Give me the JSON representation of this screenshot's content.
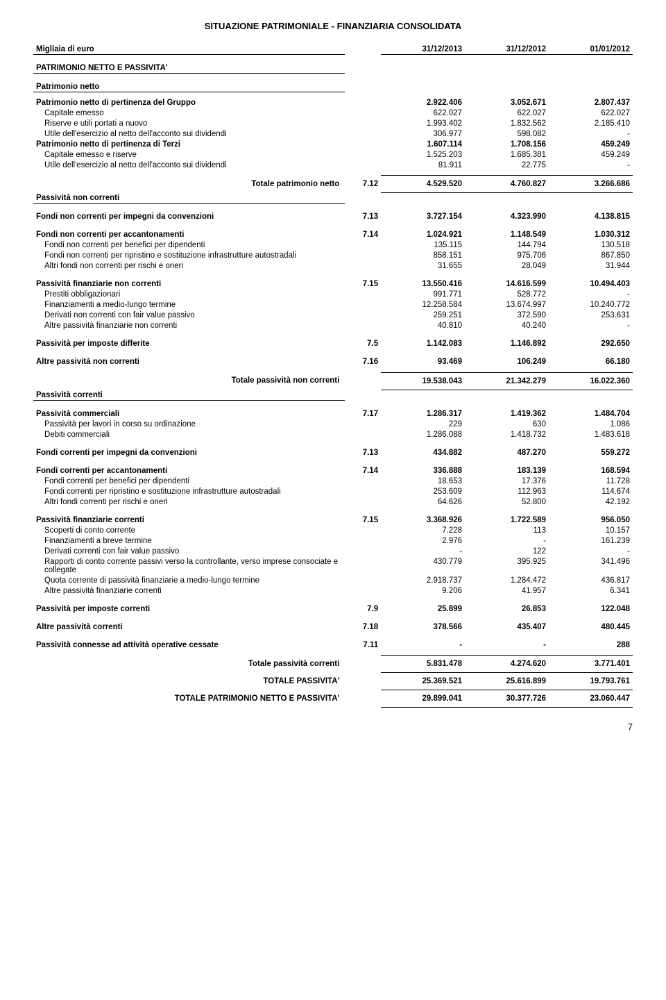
{
  "title": "SITUAZIONE PATRIMONIALE - FINANZIARIA CONSOLIDATA",
  "header": {
    "unit": "Migliaia di euro",
    "c1": "31/12/2013",
    "c2": "31/12/2012",
    "c3": "01/01/2012"
  },
  "section_main": "PATRIMONIO NETTO E PASSIVITA'",
  "section_pn": "Patrimonio netto",
  "pn_gruppo": {
    "label": "Patrimonio netto di pertinenza del Gruppo",
    "c1": "2.922.406",
    "c2": "3.052.671",
    "c3": "2.807.437"
  },
  "pn_cap": {
    "label": "Capitale emesso",
    "c1": "622.027",
    "c2": "622.027",
    "c3": "622.027"
  },
  "pn_ris": {
    "label": "Riserve e utili portati a nuovo",
    "c1": "1.993.402",
    "c2": "1.832.562",
    "c3": "2.185.410"
  },
  "pn_ut": {
    "label": "Utile dell'esercizio al netto dell'acconto sui dividendi",
    "c1": "306.977",
    "c2": "598.082",
    "c3": "-"
  },
  "pn_terzi": {
    "label": "Patrimonio netto di pertinenza di Terzi",
    "c1": "1.607.114",
    "c2": "1.708.156",
    "c3": "459.249"
  },
  "pn_tcap": {
    "label": "Capitale emesso e riserve",
    "c1": "1.525.203",
    "c2": "1.685.381",
    "c3": "459.249"
  },
  "pn_tut": {
    "label": "Utile dell'esercizio al netto dell'acconto sui dividendi",
    "c1": "81.911",
    "c2": "22.775",
    "c3": "-"
  },
  "tot_pn": {
    "label": "Totale patrimonio netto",
    "note": "7.12",
    "c1": "4.529.520",
    "c2": "4.760.827",
    "c3": "3.266.686"
  },
  "section_pnc": "Passività non correnti",
  "fnc_conv": {
    "label": "Fondi non correnti per impegni da convenzioni",
    "note": "7.13",
    "c1": "3.727.154",
    "c2": "4.323.990",
    "c3": "4.138.815"
  },
  "fnc_acc": {
    "label": "Fondi non correnti per accantonamenti",
    "note": "7.14",
    "c1": "1.024.921",
    "c2": "1.148.549",
    "c3": "1.030.312"
  },
  "fnc_dip": {
    "label": "Fondi non correnti per benefici per dipendenti",
    "c1": "135.115",
    "c2": "144.794",
    "c3": "130.518"
  },
  "fnc_rip": {
    "label": "Fondi non correnti per ripristino e sostituzione infrastrutture autostradali",
    "c1": "858.151",
    "c2": "975.706",
    "c3": "867.850"
  },
  "fnc_alt": {
    "label": "Altri fondi non correnti per rischi e oneri",
    "c1": "31.655",
    "c2": "28.049",
    "c3": "31.944"
  },
  "pfnc": {
    "label": "Passività finanziarie non correnti",
    "note": "7.15",
    "c1": "13.550.416",
    "c2": "14.616.599",
    "c3": "10.494.403"
  },
  "pfnc_obb": {
    "label": "Prestiti obbligazionari",
    "c1": "991.771",
    "c2": "528.772",
    "c3": "-"
  },
  "pfnc_fin": {
    "label": "Finanziamenti a medio-lungo termine",
    "c1": "12.258.584",
    "c2": "13.674.997",
    "c3": "10.240.772"
  },
  "pfnc_der": {
    "label": "Derivati non correnti con fair value passivo",
    "c1": "259.251",
    "c2": "372.590",
    "c3": "253.631"
  },
  "pfnc_alt": {
    "label": "Altre passività finanziarie non correnti",
    "c1": "40.810",
    "c2": "40.240",
    "c3": "-"
  },
  "pimp_diff": {
    "label": "Passività per imposte differite",
    "note": "7.5",
    "c1": "1.142.083",
    "c2": "1.146.892",
    "c3": "292.650"
  },
  "apnc": {
    "label": "Altre passività non correnti",
    "note": "7.16",
    "c1": "93.469",
    "c2": "106.249",
    "c3": "66.180"
  },
  "tot_pnc": {
    "label": "Totale passività non correnti",
    "c1": "19.538.043",
    "c2": "21.342.279",
    "c3": "16.022.360"
  },
  "section_pc": "Passività correnti",
  "pcom": {
    "label": "Passività commerciali",
    "note": "7.17",
    "c1": "1.286.317",
    "c2": "1.419.362",
    "c3": "1.484.704"
  },
  "pcom_lav": {
    "label": "Passività per lavori in corso su ordinazione",
    "c1": "229",
    "c2": "630",
    "c3": "1.086"
  },
  "pcom_deb": {
    "label": "Debiti commerciali",
    "c1": "1.286.088",
    "c2": "1.418.732",
    "c3": "1.483.618"
  },
  "fc_conv": {
    "label": "Fondi correnti per impegni da convenzioni",
    "note": "7.13",
    "c1": "434.882",
    "c2": "487.270",
    "c3": "559.272"
  },
  "fc_acc": {
    "label": "Fondi correnti per accantonamenti",
    "note": "7.14",
    "c1": "336.888",
    "c2": "183.139",
    "c3": "168.594"
  },
  "fc_dip": {
    "label": "Fondi correnti per benefici per dipendenti",
    "c1": "18.653",
    "c2": "17.376",
    "c3": "11.728"
  },
  "fc_rip": {
    "label": "Fondi correnti per ripristino e sostituzione infrastrutture autostradali",
    "c1": "253.609",
    "c2": "112.963",
    "c3": "114.674"
  },
  "fc_alt": {
    "label": "Altri fondi correnti per rischi e oneri",
    "c1": "64.626",
    "c2": "52.800",
    "c3": "42.192"
  },
  "pfc": {
    "label": "Passività finanziarie correnti",
    "note": "7.15",
    "c1": "3.368.926",
    "c2": "1.722.589",
    "c3": "956.050"
  },
  "pfc_scop": {
    "label": "Scoperti di conto corrente",
    "c1": "7.228",
    "c2": "113",
    "c3": "10.157"
  },
  "pfc_fin": {
    "label": "Finanziamenti a breve termine",
    "c1": "2.976",
    "c2": "-",
    "c3": "161.239"
  },
  "pfc_der": {
    "label": "Derivati correnti con fair value passivo",
    "c1": "-",
    "c2": "122",
    "c3": "-"
  },
  "pfc_rapp": {
    "label": "Rapporti di conto corrente passivi verso la controllante, verso imprese consociate e collegate",
    "c1": "430.779",
    "c2": "395.925",
    "c3": "341.496"
  },
  "pfc_quota": {
    "label": "Quota corrente di passività finanziarie a medio-lungo termine",
    "c1": "2.918.737",
    "c2": "1.284.472",
    "c3": "436.817"
  },
  "pfc_alt": {
    "label": "Altre passività finanziarie correnti",
    "c1": "9.206",
    "c2": "41.957",
    "c3": "6.341"
  },
  "pimp_corr": {
    "label": "Passività per imposte correnti",
    "note": "7.9",
    "c1": "25.899",
    "c2": "26.853",
    "c3": "122.048"
  },
  "apc": {
    "label": "Altre passività correnti",
    "note": "7.18",
    "c1": "378.566",
    "c2": "435.407",
    "c3": "480.445"
  },
  "pcess": {
    "label": "Passività connesse ad attività operative cessate",
    "note": "7.11",
    "c1": "-",
    "c2": "-",
    "c3": "288"
  },
  "tot_pc": {
    "label": "Totale passività correnti",
    "c1": "5.831.478",
    "c2": "4.274.620",
    "c3": "3.771.401"
  },
  "tot_pass": {
    "label": "TOTALE PASSIVITA'",
    "c1": "25.369.521",
    "c2": "25.616.899",
    "c3": "19.793.761"
  },
  "tot_pnp": {
    "label": "TOTALE PATRIMONIO NETTO E PASSIVITA'",
    "c1": "29.899.041",
    "c2": "30.377.726",
    "c3": "23.060.447"
  },
  "page": "7"
}
